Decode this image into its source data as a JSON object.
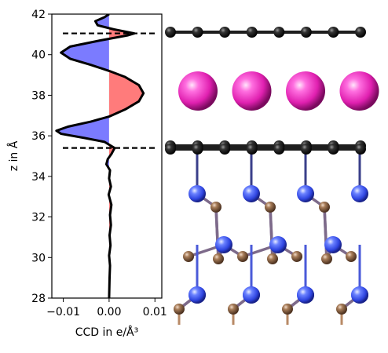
{
  "chart_data": {
    "type": "area",
    "orientation": "vertical-profile",
    "xlabel": "CCD in e/Å³",
    "ylabel": "z in Å",
    "xlim": [
      -0.0125,
      0.0115
    ],
    "ylim": [
      28,
      42
    ],
    "xticks": [
      -0.01,
      0.0,
      0.01
    ],
    "xtick_labels": [
      "−0.01",
      "0.00",
      "0.01"
    ],
    "yticks": [
      28,
      30,
      32,
      34,
      36,
      38,
      40,
      42
    ],
    "ytick_labels": [
      "28",
      "30",
      "32",
      "34",
      "36",
      "38",
      "40",
      "42"
    ],
    "grid": false,
    "positive_fill_color": "#ff7b7b",
    "negative_fill_color": "#7b7bff",
    "line_color": "#000000",
    "reference_lines_z": [
      41.05,
      35.4
    ],
    "profile": [
      {
        "z": 28.0,
        "ccd": 0.0
      },
      {
        "z": 29.0,
        "ccd": 0.0001
      },
      {
        "z": 29.6,
        "ccd": 0.0002
      },
      {
        "z": 30.1,
        "ccd": 0.0
      },
      {
        "z": 30.6,
        "ccd": 0.0003
      },
      {
        "z": 31.1,
        "ccd": 0.0001
      },
      {
        "z": 31.6,
        "ccd": 0.0004
      },
      {
        "z": 32.1,
        "ccd": 0.0002
      },
      {
        "z": 32.6,
        "ccd": 0.0005
      },
      {
        "z": 33.1,
        "ccd": -0.0001
      },
      {
        "z": 33.5,
        "ccd": 0.0004
      },
      {
        "z": 33.9,
        "ccd": 0.0
      },
      {
        "z": 34.3,
        "ccd": 0.0002
      },
      {
        "z": 34.6,
        "ccd": -0.0006
      },
      {
        "z": 34.85,
        "ccd": -0.0003
      },
      {
        "z": 35.1,
        "ccd": 0.0005
      },
      {
        "z": 35.4,
        "ccd": 0.0012
      },
      {
        "z": 35.7,
        "ccd": -0.001
      },
      {
        "z": 35.9,
        "ccd": -0.0055
      },
      {
        "z": 36.1,
        "ccd": -0.0105
      },
      {
        "z": 36.25,
        "ccd": -0.0115
      },
      {
        "z": 36.45,
        "ccd": -0.009
      },
      {
        "z": 36.7,
        "ccd": -0.004
      },
      {
        "z": 36.95,
        "ccd": 0.0
      },
      {
        "z": 37.3,
        "ccd": 0.0035
      },
      {
        "z": 37.7,
        "ccd": 0.0065
      },
      {
        "z": 38.1,
        "ccd": 0.0075
      },
      {
        "z": 38.5,
        "ccd": 0.0065
      },
      {
        "z": 38.9,
        "ccd": 0.0035
      },
      {
        "z": 39.2,
        "ccd": 0.0
      },
      {
        "z": 39.5,
        "ccd": -0.004
      },
      {
        "z": 39.8,
        "ccd": -0.0085
      },
      {
        "z": 40.1,
        "ccd": -0.0105
      },
      {
        "z": 40.4,
        "ccd": -0.0085
      },
      {
        "z": 40.7,
        "ccd": -0.002
      },
      {
        "z": 40.95,
        "ccd": 0.004
      },
      {
        "z": 41.05,
        "ccd": 0.0055
      },
      {
        "z": 41.25,
        "ccd": 0.001
      },
      {
        "z": 41.45,
        "ccd": -0.0025
      },
      {
        "z": 41.65,
        "ccd": -0.003
      },
      {
        "z": 41.85,
        "ccd": -0.001
      },
      {
        "z": 42.0,
        "ccd": 0.0
      }
    ]
  },
  "structure": {
    "atom_colors": {
      "graphene_carbon": "#1e1e1e",
      "intercalant": "#e020b0",
      "nitrogen": "#3f5bff",
      "boron_or_carbon_substrate": "#8a6142"
    },
    "graphene_top_layer_atoms": 8,
    "intercalant_atoms": 4,
    "graphene_bottom_layer_atoms": 8
  }
}
